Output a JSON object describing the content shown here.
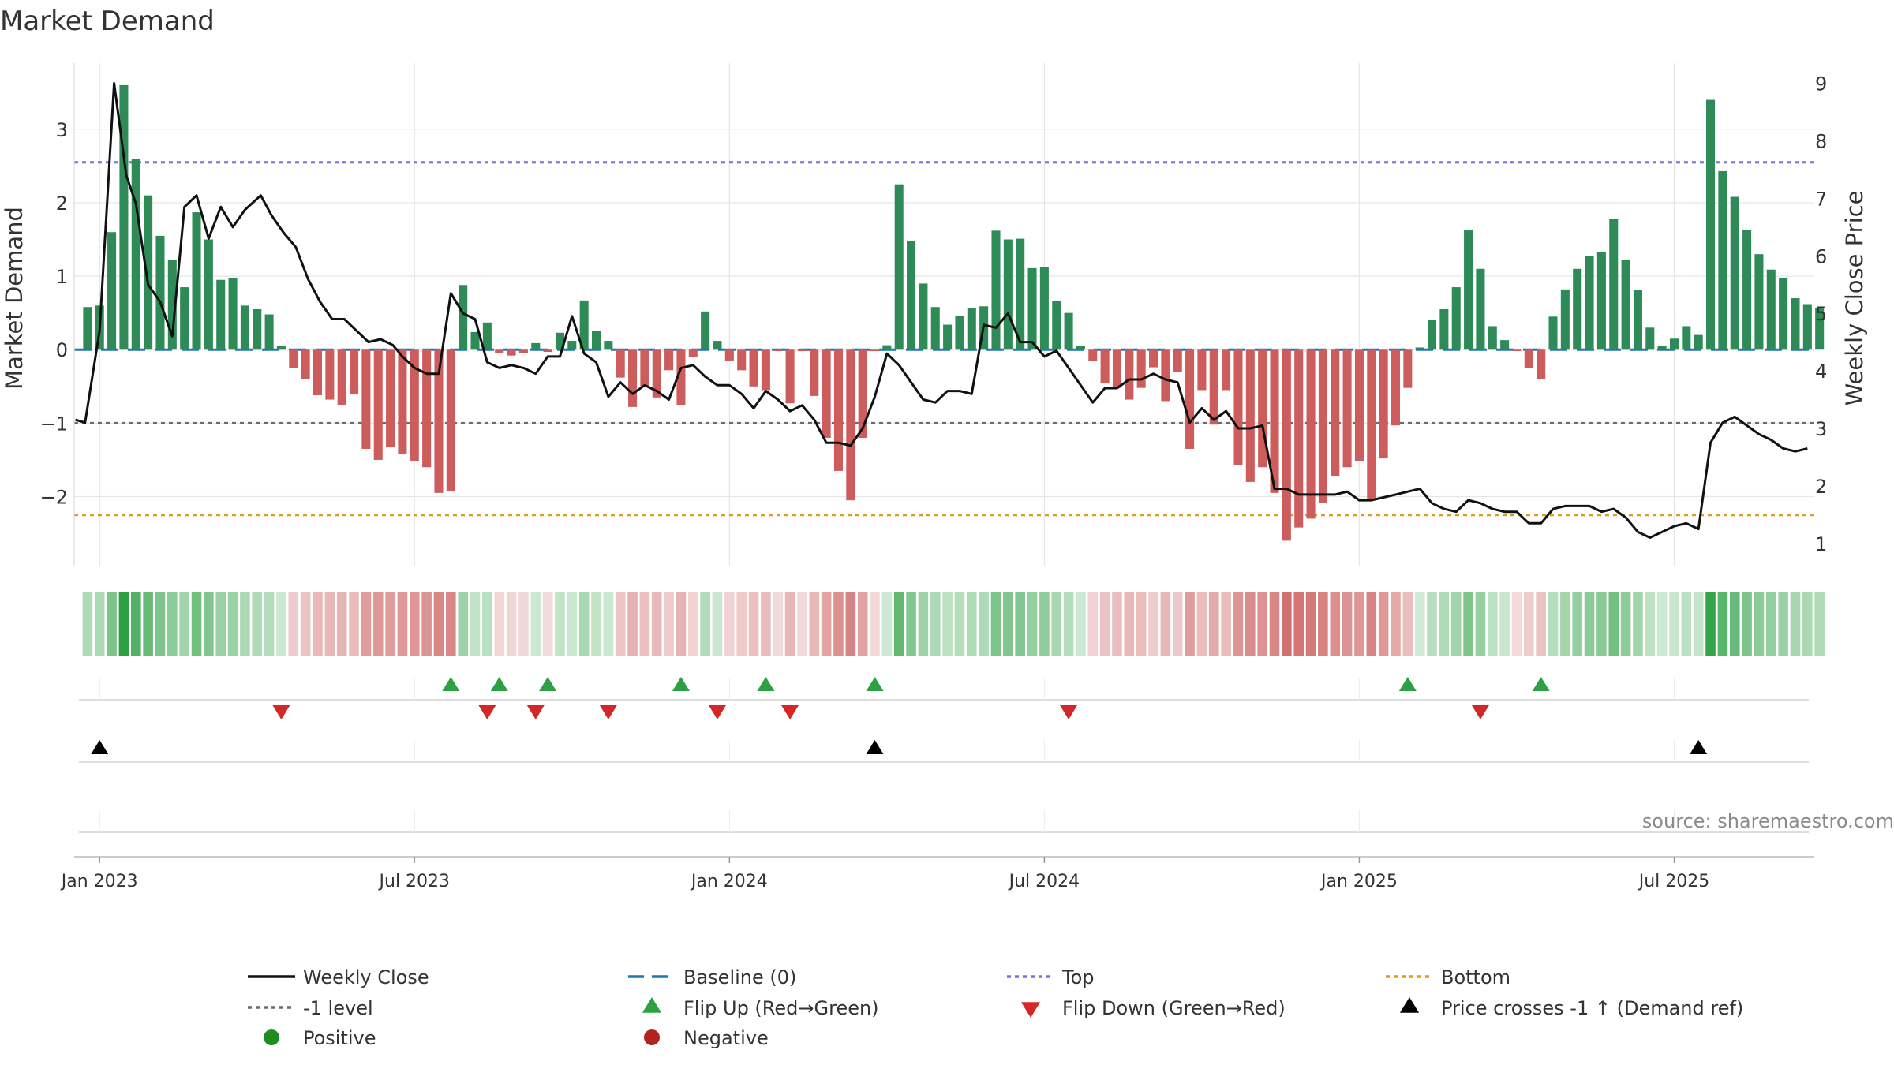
{
  "chart_data": {
    "type": "bar",
    "title": "Market Demand",
    "ylabel_left": "Market Demand",
    "ylabel_right": "Weekly Close Price",
    "ylim_left": [
      -2.95,
      3.9
    ],
    "ylim_right": [
      0.6,
      9.35
    ],
    "left_ticks": [
      3,
      2,
      1,
      0,
      -1,
      -2
    ],
    "left_tick_labels": [
      "3",
      "2",
      "1",
      "0",
      "−1",
      "−2"
    ],
    "right_ticks": [
      9,
      8,
      7,
      6,
      5,
      4,
      3,
      2,
      1
    ],
    "right_tick_labels": [
      "9",
      "8",
      "7",
      "6",
      "5",
      "4",
      "3",
      "2",
      "1"
    ],
    "x_range_weeks": [
      -1.1,
      142.5
    ],
    "x_ticks": [
      {
        "label": "Jan 2023",
        "week": 1
      },
      {
        "label": "Jul 2023",
        "week": 27
      },
      {
        "label": "Jan 2024",
        "week": 53
      },
      {
        "label": "Jul 2024",
        "week": 79
      },
      {
        "label": "Jan 2025",
        "week": 105
      },
      {
        "label": "Jul 2025",
        "week": 131
      }
    ],
    "reference_lines": {
      "top": 2.55,
      "minus_one": -1.0,
      "bottom": -2.25,
      "baseline": 0
    },
    "demand": [
      0.58,
      0.6,
      1.6,
      3.6,
      2.6,
      2.1,
      1.55,
      1.22,
      0.85,
      1.87,
      1.5,
      0.95,
      0.98,
      0.6,
      0.55,
      0.48,
      0.05,
      -0.25,
      -0.4,
      -0.62,
      -0.68,
      -0.75,
      -0.6,
      -1.35,
      -1.5,
      -1.33,
      -1.42,
      -1.52,
      -1.6,
      -1.95,
      -1.93,
      0.88,
      0.24,
      0.37,
      -0.05,
      -0.08,
      -0.05,
      0.09,
      -0.03,
      0.23,
      0.12,
      0.67,
      0.25,
      0.12,
      -0.38,
      -0.78,
      -0.5,
      -0.65,
      -0.28,
      -0.75,
      -0.1,
      0.52,
      0.12,
      -0.15,
      -0.28,
      -0.5,
      -0.55,
      -0.02,
      -0.73,
      -0.02,
      -0.63,
      -1.2,
      -1.65,
      -2.05,
      -1.2,
      -0.02,
      0.06,
      2.25,
      1.48,
      0.9,
      0.58,
      0.34,
      0.46,
      0.57,
      0.59,
      1.62,
      1.5,
      1.51,
      1.11,
      1.13,
      0.66,
      0.5,
      0.05,
      -0.15,
      -0.46,
      -0.52,
      -0.68,
      -0.52,
      -0.24,
      -0.7,
      -0.3,
      -1.35,
      -0.55,
      -1.02,
      -0.55,
      -1.57,
      -1.8,
      -1.6,
      -1.95,
      -2.6,
      -2.42,
      -2.3,
      -2.08,
      -1.72,
      -1.6,
      -1.52,
      -2.03,
      -1.48,
      -1.03,
      -0.52,
      0.03,
      0.41,
      0.55,
      0.85,
      1.63,
      1.1,
      0.32,
      0.13,
      -0.02,
      -0.25,
      -0.4,
      0.45,
      0.82,
      1.1,
      1.28,
      1.33,
      1.78,
      1.22,
      0.81,
      0.3,
      0.05,
      0.15,
      0.32,
      0.2,
      3.4,
      2.43,
      2.08,
      1.63,
      1.3,
      1.09,
      0.97,
      0.7,
      0.62,
      0.57
    ],
    "weekly_close": [
      {
        "w": -1.0,
        "p": 3.15
      },
      {
        "w": -0.2,
        "p": 3.1
      },
      {
        "w": 1.0,
        "p": 4.7
      },
      {
        "w": 2.2,
        "p": 9.0
      },
      {
        "w": 3.2,
        "p": 7.4
      },
      {
        "w": 4.0,
        "p": 6.9
      },
      {
        "w": 5.0,
        "p": 5.5
      },
      {
        "w": 6.0,
        "p": 5.2
      },
      {
        "w": 7.0,
        "p": 4.6
      },
      {
        "w": 8.0,
        "p": 6.85
      },
      {
        "w": 9.0,
        "p": 7.05
      },
      {
        "w": 10.0,
        "p": 6.3
      },
      {
        "w": 11.0,
        "p": 6.85
      },
      {
        "w": 12.0,
        "p": 6.5
      },
      {
        "w": 13.0,
        "p": 6.8
      },
      {
        "w": 14.3,
        "p": 7.05
      },
      {
        "w": 15.2,
        "p": 6.7
      },
      {
        "w": 16.2,
        "p": 6.4
      },
      {
        "w": 17.2,
        "p": 6.15
      },
      {
        "w": 18.2,
        "p": 5.6
      },
      {
        "w": 19.2,
        "p": 5.2
      },
      {
        "w": 20.2,
        "p": 4.9
      },
      {
        "w": 21.2,
        "p": 4.9
      },
      {
        "w": 22.2,
        "p": 4.7
      },
      {
        "w": 23.2,
        "p": 4.5
      },
      {
        "w": 24.2,
        "p": 4.55
      },
      {
        "w": 25.2,
        "p": 4.45
      },
      {
        "w": 26.0,
        "p": 4.25
      },
      {
        "w": 27.0,
        "p": 4.05
      },
      {
        "w": 28.0,
        "p": 3.95
      },
      {
        "w": 29.0,
        "p": 3.95
      },
      {
        "w": 30.0,
        "p": 5.35
      },
      {
        "w": 31.0,
        "p": 5.0
      },
      {
        "w": 32.0,
        "p": 4.9
      },
      {
        "w": 33.0,
        "p": 4.15
      },
      {
        "w": 34.0,
        "p": 4.05
      },
      {
        "w": 35.0,
        "p": 4.1
      },
      {
        "w": 36.0,
        "p": 4.05
      },
      {
        "w": 37.0,
        "p": 3.95
      },
      {
        "w": 38.0,
        "p": 4.25
      },
      {
        "w": 39.0,
        "p": 4.25
      },
      {
        "w": 40.0,
        "p": 4.95
      },
      {
        "w": 41.0,
        "p": 4.3
      },
      {
        "w": 42.0,
        "p": 4.15
      },
      {
        "w": 43.0,
        "p": 3.55
      },
      {
        "w": 44.0,
        "p": 3.8
      },
      {
        "w": 45.0,
        "p": 3.6
      },
      {
        "w": 46.0,
        "p": 3.75
      },
      {
        "w": 47.0,
        "p": 3.65
      },
      {
        "w": 48.0,
        "p": 3.5
      },
      {
        "w": 49.0,
        "p": 4.05
      },
      {
        "w": 50.0,
        "p": 4.1
      },
      {
        "w": 51.0,
        "p": 3.9
      },
      {
        "w": 52.0,
        "p": 3.75
      },
      {
        "w": 53.0,
        "p": 3.75
      },
      {
        "w": 54.0,
        "p": 3.6
      },
      {
        "w": 55.0,
        "p": 3.35
      },
      {
        "w": 56.0,
        "p": 3.65
      },
      {
        "w": 57.0,
        "p": 3.5
      },
      {
        "w": 58.0,
        "p": 3.3
      },
      {
        "w": 59.0,
        "p": 3.4
      },
      {
        "w": 60.0,
        "p": 3.15
      },
      {
        "w": 61.0,
        "p": 2.75
      },
      {
        "w": 62.0,
        "p": 2.75
      },
      {
        "w": 63.0,
        "p": 2.7
      },
      {
        "w": 64.0,
        "p": 3.0
      },
      {
        "w": 65.0,
        "p": 3.55
      },
      {
        "w": 66.0,
        "p": 4.3
      },
      {
        "w": 67.0,
        "p": 4.1
      },
      {
        "w": 68.0,
        "p": 3.8
      },
      {
        "w": 69.0,
        "p": 3.5
      },
      {
        "w": 70.0,
        "p": 3.45
      },
      {
        "w": 71.0,
        "p": 3.65
      },
      {
        "w": 72.0,
        "p": 3.65
      },
      {
        "w": 73.0,
        "p": 3.6
      },
      {
        "w": 74.0,
        "p": 4.8
      },
      {
        "w": 75.0,
        "p": 4.75
      },
      {
        "w": 76.0,
        "p": 5.0
      },
      {
        "w": 77.0,
        "p": 4.5
      },
      {
        "w": 78.0,
        "p": 4.5
      },
      {
        "w": 79.0,
        "p": 4.25
      },
      {
        "w": 80.0,
        "p": 4.35
      },
      {
        "w": 81.0,
        "p": 4.05
      },
      {
        "w": 82.0,
        "p": 3.75
      },
      {
        "w": 83.0,
        "p": 3.45
      },
      {
        "w": 84.0,
        "p": 3.7
      },
      {
        "w": 85.0,
        "p": 3.7
      },
      {
        "w": 86.0,
        "p": 3.85
      },
      {
        "w": 87.0,
        "p": 3.85
      },
      {
        "w": 88.0,
        "p": 3.95
      },
      {
        "w": 89.0,
        "p": 3.85
      },
      {
        "w": 90.0,
        "p": 3.8
      },
      {
        "w": 91.0,
        "p": 3.1
      },
      {
        "w": 92.0,
        "p": 3.35
      },
      {
        "w": 93.0,
        "p": 3.15
      },
      {
        "w": 94.0,
        "p": 3.3
      },
      {
        "w": 95.0,
        "p": 3.0
      },
      {
        "w": 96.0,
        "p": 3.0
      },
      {
        "w": 97.0,
        "p": 3.05
      },
      {
        "w": 98.0,
        "p": 1.95
      },
      {
        "w": 99.0,
        "p": 1.95
      },
      {
        "w": 100.0,
        "p": 1.85
      },
      {
        "w": 101.0,
        "p": 1.85
      },
      {
        "w": 102.0,
        "p": 1.85
      },
      {
        "w": 103.0,
        "p": 1.85
      },
      {
        "w": 104.0,
        "p": 1.9
      },
      {
        "w": 105.0,
        "p": 1.75
      },
      {
        "w": 106.0,
        "p": 1.75
      },
      {
        "w": 107.0,
        "p": 1.8
      },
      {
        "w": 108.0,
        "p": 1.85
      },
      {
        "w": 109.0,
        "p": 1.9
      },
      {
        "w": 110.0,
        "p": 1.95
      },
      {
        "w": 111.0,
        "p": 1.7
      },
      {
        "w": 112.0,
        "p": 1.6
      },
      {
        "w": 113.0,
        "p": 1.55
      },
      {
        "w": 114.0,
        "p": 1.75
      },
      {
        "w": 115.0,
        "p": 1.7
      },
      {
        "w": 116.0,
        "p": 1.6
      },
      {
        "w": 117.0,
        "p": 1.55
      },
      {
        "w": 118.0,
        "p": 1.55
      },
      {
        "w": 119.0,
        "p": 1.35
      },
      {
        "w": 120.0,
        "p": 1.35
      },
      {
        "w": 121.0,
        "p": 1.6
      },
      {
        "w": 122.0,
        "p": 1.65
      },
      {
        "w": 123.0,
        "p": 1.65
      },
      {
        "w": 124.0,
        "p": 1.65
      },
      {
        "w": 125.0,
        "p": 1.55
      },
      {
        "w": 126.0,
        "p": 1.6
      },
      {
        "w": 127.0,
        "p": 1.45
      },
      {
        "w": 128.0,
        "p": 1.2
      },
      {
        "w": 129.0,
        "p": 1.1
      },
      {
        "w": 130.0,
        "p": 1.2
      },
      {
        "w": 131.0,
        "p": 1.3
      },
      {
        "w": 132.0,
        "p": 1.35
      },
      {
        "w": 133.0,
        "p": 1.25
      },
      {
        "w": 134.0,
        "p": 2.75
      },
      {
        "w": 135.0,
        "p": 3.1
      },
      {
        "w": 136.0,
        "p": 3.2
      },
      {
        "w": 137.0,
        "p": 3.05
      },
      {
        "w": 138.0,
        "p": 2.9
      },
      {
        "w": 139.0,
        "p": 2.8
      },
      {
        "w": 140.0,
        "p": 2.65
      },
      {
        "w": 141.0,
        "p": 2.6
      },
      {
        "w": 142.0,
        "p": 2.65
      }
    ],
    "flip_up_weeks": [
      30,
      34,
      38,
      49,
      56,
      65,
      109,
      120
    ],
    "flip_down_weeks": [
      16,
      33,
      37,
      43,
      52,
      58,
      81,
      115
    ],
    "price_cross_weeks": [
      1,
      65,
      133
    ],
    "source_note": "source: sharemaestro.com",
    "legend": [
      {
        "label": "Weekly Close",
        "marker": "solid-line",
        "color": "#111111"
      },
      {
        "label": "Baseline (0)",
        "marker": "dashed-line",
        "color": "#1f77b4"
      },
      {
        "label": "Top",
        "marker": "dotted-line",
        "color": "#7b6fd6"
      },
      {
        "label": "Bottom",
        "marker": "dotted-line",
        "color": "#d89a2a"
      },
      {
        "label": "-1 level",
        "marker": "dotted-line",
        "color": "#6b6b6b"
      },
      {
        "label": "Flip Up (Red→Green)",
        "marker": "triangle-up",
        "color": "#2ca042"
      },
      {
        "label": "Flip Down (Green→Red)",
        "marker": "triangle-down",
        "color": "#d62728"
      },
      {
        "label": "Price crosses -1 ↑ (Demand ref)",
        "marker": "triangle-up",
        "color": "#000000"
      },
      {
        "label": "Positive",
        "marker": "circle",
        "color": "#228b22"
      },
      {
        "label": "Negative",
        "marker": "circle",
        "color": "#b22222"
      }
    ],
    "colors": {
      "positive_bar": "#2e8b57",
      "negative_bar": "#cd5c5c",
      "price_line": "#111111",
      "grid": "#e6e6e6",
      "strip_pos_rgb": [
        44,
        160,
        66
      ],
      "strip_neg_rgb": [
        200,
        80,
        80
      ]
    }
  }
}
